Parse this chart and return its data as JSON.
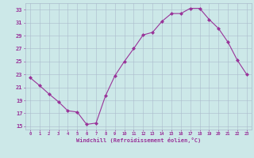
{
  "x": [
    0,
    1,
    2,
    3,
    4,
    5,
    6,
    7,
    8,
    9,
    10,
    11,
    12,
    13,
    14,
    15,
    16,
    17,
    18,
    19,
    20,
    21,
    22,
    23
  ],
  "y": [
    22.5,
    21.3,
    20.0,
    18.8,
    17.4,
    17.2,
    15.3,
    15.5,
    19.7,
    22.8,
    25.0,
    27.0,
    29.1,
    29.5,
    31.2,
    32.4,
    32.4,
    33.2,
    33.2,
    31.5,
    30.1,
    28.0,
    25.2,
    23.0
  ],
  "line_color": "#993399",
  "marker": "D",
  "marker_size": 2,
  "bg_color": "#cce8e8",
  "grid_color": "#aabbcc",
  "tick_color": "#993399",
  "xlabel": "Windchill (Refroidissement éolien,°C)",
  "ylabel_ticks": [
    15,
    17,
    19,
    21,
    23,
    25,
    27,
    29,
    31,
    33
  ],
  "xlim": [
    -0.5,
    23.5
  ],
  "ylim": [
    14.5,
    34.0
  ],
  "font_color": "#993399"
}
